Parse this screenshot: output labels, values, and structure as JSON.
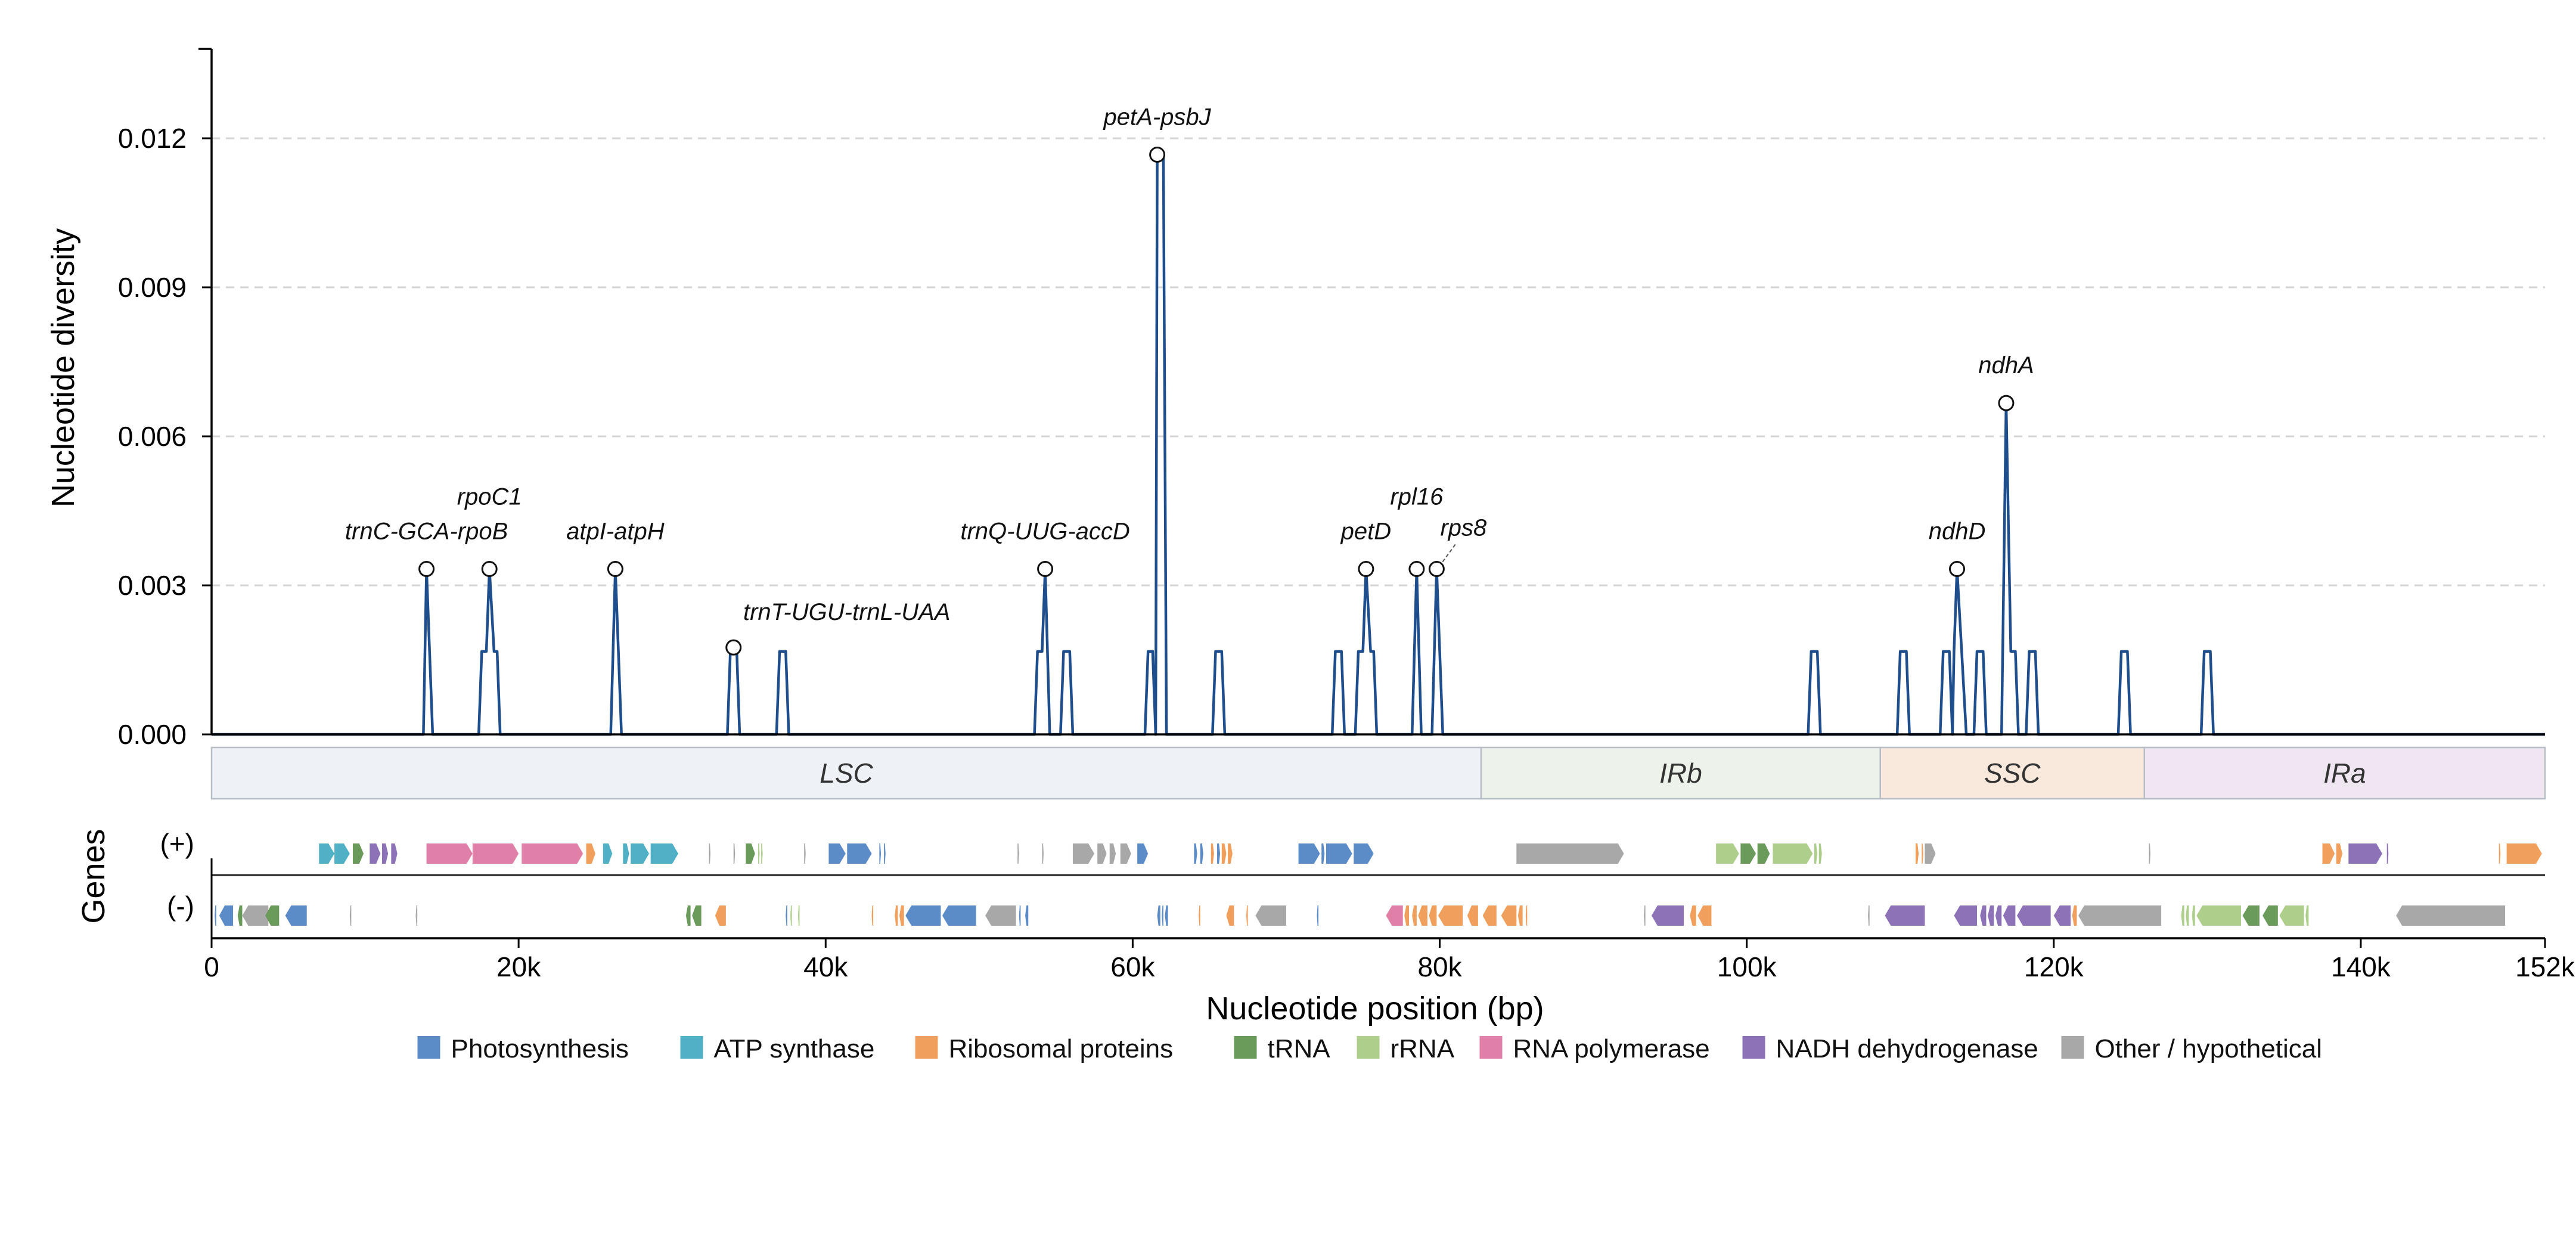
{
  "colors": {
    "line": "#1f4e8c",
    "Photosynthesis": "#5b8cc7",
    "ATP synthase": "#4fb0c6",
    "Ribosomal proteins": "#f0a05c",
    "tRNA": "#6a9b5a",
    "rRNA": "#aecf8c",
    "RNA polymerase": "#e07fa8",
    "NADH dehydrogenase": "#8e72b8",
    "Other / hypothetical": "#a8a8a8"
  },
  "chart_data": {
    "type": "line",
    "xlabel": "Nucleotide position (bp)",
    "ylabel": "Nucleotide diversity",
    "xlim": [
      0,
      152000
    ],
    "ylim": [
      0,
      0.0138
    ],
    "grid": "horizontal dashed",
    "x_ticks": [
      {
        "value": 0,
        "label": "0"
      },
      {
        "value": 20000,
        "label": "20k"
      },
      {
        "value": 40000,
        "label": "40k"
      },
      {
        "value": 60000,
        "label": "60k"
      },
      {
        "value": 80000,
        "label": "80k"
      },
      {
        "value": 100000,
        "label": "100k"
      },
      {
        "value": 120000,
        "label": "120k"
      },
      {
        "value": 140000,
        "label": "140k"
      },
      {
        "value": 152000,
        "label": "152k"
      }
    ],
    "y_ticks": [
      {
        "value": 0,
        "label": "0.000"
      },
      {
        "value": 0.003,
        "label": "0.003"
      },
      {
        "value": 0.006,
        "label": "0.006"
      },
      {
        "value": 0.009,
        "label": "0.009"
      },
      {
        "value": 0.012,
        "label": "0.012"
      }
    ],
    "series": [
      {
        "points": [
          [
            0,
            0
          ],
          [
            13800,
            0
          ],
          [
            14000,
            0.00333
          ],
          [
            14400,
            0
          ],
          [
            17400,
            0
          ],
          [
            17600,
            0.00167
          ],
          [
            17900,
            0.00167
          ],
          [
            18100,
            0.00333
          ],
          [
            18400,
            0.00167
          ],
          [
            18600,
            0.00167
          ],
          [
            18800,
            0
          ],
          [
            26000,
            0
          ],
          [
            26300,
            0.00333
          ],
          [
            26700,
            0
          ],
          [
            33600,
            0
          ],
          [
            33800,
            0.00175
          ],
          [
            34200,
            0.00175
          ],
          [
            34400,
            0
          ],
          [
            36800,
            0
          ],
          [
            37000,
            0.00167
          ],
          [
            37400,
            0.00167
          ],
          [
            37600,
            0
          ],
          [
            53600,
            0
          ],
          [
            53800,
            0.00167
          ],
          [
            54100,
            0.00167
          ],
          [
            54300,
            0.00333
          ],
          [
            54600,
            0
          ],
          [
            55300,
            0
          ],
          [
            55500,
            0.00167
          ],
          [
            55900,
            0.00167
          ],
          [
            56100,
            0
          ],
          [
            60800,
            0
          ],
          [
            61000,
            0.00167
          ],
          [
            61300,
            0.00167
          ],
          [
            61500,
            0
          ],
          [
            61600,
            0.01167
          ],
          [
            62000,
            0.01167
          ],
          [
            62200,
            0
          ],
          [
            65200,
            0
          ],
          [
            65400,
            0.00167
          ],
          [
            65800,
            0.00167
          ],
          [
            66000,
            0
          ],
          [
            73000,
            0
          ],
          [
            73200,
            0.00167
          ],
          [
            73600,
            0.00167
          ],
          [
            73800,
            0
          ],
          [
            74500,
            0
          ],
          [
            74700,
            0.00167
          ],
          [
            75000,
            0.00167
          ],
          [
            75200,
            0.00333
          ],
          [
            75500,
            0.00167
          ],
          [
            75700,
            0.00167
          ],
          [
            75900,
            0
          ],
          [
            78200,
            0
          ],
          [
            78500,
            0.00333
          ],
          [
            78800,
            0
          ],
          [
            79500,
            0
          ],
          [
            79800,
            0.00333
          ],
          [
            80200,
            0
          ],
          [
            104000,
            0
          ],
          [
            104200,
            0.00167
          ],
          [
            104600,
            0.00167
          ],
          [
            104800,
            0
          ],
          [
            109800,
            0
          ],
          [
            110000,
            0.00167
          ],
          [
            110400,
            0.00167
          ],
          [
            110600,
            0
          ],
          [
            112600,
            0
          ],
          [
            112800,
            0.00167
          ],
          [
            113200,
            0.00167
          ],
          [
            113400,
            0
          ],
          [
            113500,
            0.00167
          ],
          [
            113700,
            0.00333
          ],
          [
            114000,
            0.00167
          ],
          [
            114300,
            0
          ],
          [
            114800,
            0
          ],
          [
            115000,
            0.00167
          ],
          [
            115400,
            0.00167
          ],
          [
            115600,
            0
          ],
          [
            116600,
            0
          ],
          [
            116900,
            0.00667
          ],
          [
            117200,
            0.00167
          ],
          [
            117500,
            0.00167
          ],
          [
            117700,
            0
          ],
          [
            118200,
            0
          ],
          [
            118400,
            0.00167
          ],
          [
            118800,
            0.00167
          ],
          [
            119000,
            0
          ],
          [
            124200,
            0
          ],
          [
            124400,
            0.00167
          ],
          [
            124800,
            0.00167
          ],
          [
            125000,
            0
          ],
          [
            129600,
            0
          ],
          [
            129800,
            0.00167
          ],
          [
            130200,
            0.00167
          ],
          [
            130400,
            0
          ],
          [
            152000,
            0
          ]
        ]
      }
    ],
    "annotations": [
      {
        "label": "trnC-GCA-rpoB",
        "x": 14000,
        "y": 0.00333,
        "pos": "above-left"
      },
      {
        "label": "rpoC1",
        "x": 18100,
        "y": 0.00333,
        "pos": "above-high"
      },
      {
        "label": "atpI-atpH",
        "x": 26300,
        "y": 0.00333,
        "pos": "above"
      },
      {
        "label": "trnT-UGU-trnL-UAA",
        "x": 34000,
        "y": 0.00175,
        "pos": "right-above"
      },
      {
        "label": "trnQ-UUG-accD",
        "x": 54300,
        "y": 0.00333,
        "pos": "above"
      },
      {
        "label": "petA-psbJ",
        "x": 61600,
        "y": 0.01167,
        "pos": "above"
      },
      {
        "label": "petD",
        "x": 75200,
        "y": 0.00333,
        "pos": "above"
      },
      {
        "label": "rpl16",
        "x": 78500,
        "y": 0.00333,
        "pos": "above-high"
      },
      {
        "label": "rps8",
        "x": 79800,
        "y": 0.00333,
        "pos": "above-right"
      },
      {
        "label": "ndhD",
        "x": 113700,
        "y": 0.00333,
        "pos": "above"
      },
      {
        "label": "ndhA",
        "x": 116900,
        "y": 0.00667,
        "pos": "above"
      }
    ],
    "regions": [
      {
        "label": "LSC",
        "start": 0,
        "end": 82700,
        "color": "#eef2f6"
      },
      {
        "label": "IRb",
        "start": 82700,
        "end": 108700,
        "color": "#edf3ea"
      },
      {
        "label": "SSC",
        "start": 108700,
        "end": 125900,
        "color": "#f9e9dc"
      },
      {
        "label": "IRa",
        "start": 125900,
        "end": 152000,
        "color": "#f0e6f1"
      }
    ],
    "genes_axis_label": "Genes",
    "strand_labels": {
      "plus": "(+)",
      "minus": "(-)"
    },
    "genes_plus": [
      [
        7000,
        8000,
        "ATP synthase"
      ],
      [
        8000,
        9000,
        "ATP synthase"
      ],
      [
        9200,
        9900,
        "tRNA"
      ],
      [
        10300,
        11000,
        "NADH dehydrogenase"
      ],
      [
        11100,
        11500,
        "NADH dehydrogenase"
      ],
      [
        11700,
        12100,
        "NADH dehydrogenase"
      ],
      [
        14000,
        17000,
        "RNA polymerase"
      ],
      [
        17000,
        20000,
        "RNA polymerase"
      ],
      [
        20200,
        24200,
        "RNA polymerase"
      ],
      [
        24400,
        25000,
        "Ribosomal proteins"
      ],
      [
        25500,
        26100,
        "ATP synthase"
      ],
      [
        26800,
        27200,
        "ATP synthase"
      ],
      [
        27300,
        28500,
        "ATP synthase"
      ],
      [
        28600,
        30400,
        "ATP synthase"
      ],
      [
        32400,
        32500,
        "Other / hypothetical"
      ],
      [
        34000,
        34100,
        "Other / hypothetical"
      ],
      [
        34800,
        35400,
        "tRNA"
      ],
      [
        35600,
        35700,
        "rRNA"
      ],
      [
        35800,
        35900,
        "rRNA"
      ],
      [
        38600,
        38700,
        "Other / hypothetical"
      ],
      [
        40200,
        41300,
        "Photosynthesis"
      ],
      [
        41400,
        43000,
        "Photosynthesis"
      ],
      [
        43500,
        43600,
        "Photosynthesis"
      ],
      [
        43800,
        43900,
        "Photosynthesis"
      ],
      [
        52500,
        52600,
        "Other / hypothetical"
      ],
      [
        54100,
        54200,
        "Other / hypothetical"
      ],
      [
        56100,
        57500,
        "Other / hypothetical"
      ],
      [
        57700,
        58300,
        "Other / hypothetical"
      ],
      [
        58500,
        58900,
        "Other / hypothetical"
      ],
      [
        59200,
        59900,
        "Other / hypothetical"
      ],
      [
        60300,
        61000,
        "Photosynthesis"
      ],
      [
        64000,
        64200,
        "Photosynthesis"
      ],
      [
        64400,
        64600,
        "Photosynthesis"
      ],
      [
        65100,
        65300,
        "Ribosomal proteins"
      ],
      [
        65500,
        65700,
        "Photosynthesis"
      ],
      [
        65800,
        66100,
        "Ribosomal proteins"
      ],
      [
        66200,
        66500,
        "Ribosomal proteins"
      ],
      [
        70800,
        72200,
        "Photosynthesis"
      ],
      [
        72300,
        72500,
        "Photosynthesis"
      ],
      [
        72600,
        74300,
        "Photosynthesis"
      ],
      [
        74400,
        75700,
        "Photosynthesis"
      ],
      [
        85000,
        92000,
        "Other / hypothetical"
      ],
      [
        98000,
        99500,
        "rRNA"
      ],
      [
        99600,
        100600,
        "tRNA"
      ],
      [
        100700,
        101500,
        "tRNA"
      ],
      [
        101700,
        104300,
        "rRNA"
      ],
      [
        104400,
        104600,
        "rRNA"
      ],
      [
        104700,
        104900,
        "rRNA"
      ],
      [
        111000,
        111200,
        "Ribosomal proteins"
      ],
      [
        111400,
        111500,
        "Ribosomal proteins"
      ],
      [
        111600,
        112300,
        "Other / hypothetical"
      ],
      [
        126200,
        126300,
        "Other / hypothetical"
      ],
      [
        137500,
        138300,
        "Ribosomal proteins"
      ],
      [
        138400,
        138800,
        "Ribosomal proteins"
      ],
      [
        139200,
        141400,
        "NADH dehydrogenase"
      ],
      [
        141700,
        141800,
        "NADH dehydrogenase"
      ],
      [
        149000,
        149100,
        "Ribosomal proteins"
      ],
      [
        149500,
        151800,
        "Ribosomal proteins"
      ]
    ],
    "genes_minus": [
      [
        200,
        300,
        "Photosynthesis"
      ],
      [
        500,
        1400,
        "Photosynthesis"
      ],
      [
        1700,
        2000,
        "tRNA"
      ],
      [
        2000,
        3700,
        "Other / hypothetical"
      ],
      [
        3500,
        4400,
        "tRNA"
      ],
      [
        4800,
        6200,
        "Photosynthesis"
      ],
      [
        9000,
        9100,
        "Other / hypothetical"
      ],
      [
        13300,
        13400,
        "Other / hypothetical"
      ],
      [
        30900,
        31200,
        "tRNA"
      ],
      [
        31300,
        31900,
        "tRNA"
      ],
      [
        32800,
        33500,
        "Ribosomal proteins"
      ],
      [
        37400,
        37500,
        "Photosynthesis"
      ],
      [
        37700,
        37800,
        "rRNA"
      ],
      [
        38200,
        38300,
        "rRNA"
      ],
      [
        43000,
        43100,
        "Ribosomal proteins"
      ],
      [
        44500,
        44700,
        "Ribosomal proteins"
      ],
      [
        44800,
        45100,
        "Ribosomal proteins"
      ],
      [
        45200,
        47500,
        "Photosynthesis"
      ],
      [
        47600,
        49800,
        "Photosynthesis"
      ],
      [
        50400,
        52400,
        "Other / hypothetical"
      ],
      [
        52600,
        52700,
        "Photosynthesis"
      ],
      [
        53000,
        53200,
        "Photosynthesis"
      ],
      [
        61600,
        61800,
        "Photosynthesis"
      ],
      [
        61900,
        62000,
        "Photosynthesis"
      ],
      [
        62100,
        62300,
        "Photosynthesis"
      ],
      [
        64300,
        64400,
        "Ribosomal proteins"
      ],
      [
        66100,
        66600,
        "Ribosomal proteins"
      ],
      [
        67400,
        67500,
        "Ribosomal proteins"
      ],
      [
        68000,
        70000,
        "Other / hypothetical"
      ],
      [
        72000,
        72100,
        "Photosynthesis"
      ],
      [
        76500,
        77600,
        "RNA polymerase"
      ],
      [
        77700,
        78000,
        "Ribosomal proteins"
      ],
      [
        78200,
        78500,
        "Ribosomal proteins"
      ],
      [
        78600,
        79200,
        "Ribosomal proteins"
      ],
      [
        79300,
        79800,
        "Ribosomal proteins"
      ],
      [
        79900,
        81500,
        "Ribosomal proteins"
      ],
      [
        81800,
        82500,
        "Ribosomal proteins"
      ],
      [
        82800,
        83700,
        "Ribosomal proteins"
      ],
      [
        84000,
        85000,
        "Ribosomal proteins"
      ],
      [
        85100,
        85400,
        "Ribosomal proteins"
      ],
      [
        85600,
        85700,
        "Ribosomal proteins"
      ],
      [
        93300,
        93400,
        "Other / hypothetical"
      ],
      [
        93800,
        95900,
        "NADH dehydrogenase"
      ],
      [
        96300,
        96700,
        "Ribosomal proteins"
      ],
      [
        96800,
        97700,
        "Ribosomal proteins"
      ],
      [
        107900,
        108000,
        "Other / hypothetical"
      ],
      [
        109000,
        111600,
        "NADH dehydrogenase"
      ],
      [
        113500,
        115000,
        "NADH dehydrogenase"
      ],
      [
        115200,
        115600,
        "NADH dehydrogenase"
      ],
      [
        115700,
        116100,
        "NADH dehydrogenase"
      ],
      [
        116200,
        116600,
        "NADH dehydrogenase"
      ],
      [
        116700,
        117500,
        "NADH dehydrogenase"
      ],
      [
        117600,
        119800,
        "NADH dehydrogenase"
      ],
      [
        120000,
        121100,
        "NADH dehydrogenase"
      ],
      [
        121200,
        121500,
        "Ribosomal proteins"
      ],
      [
        121600,
        127000,
        "Other / hypothetical"
      ],
      [
        128300,
        128500,
        "rRNA"
      ],
      [
        128600,
        128800,
        "rRNA"
      ],
      [
        129000,
        129200,
        "rRNA"
      ],
      [
        129300,
        132200,
        "rRNA"
      ],
      [
        132300,
        133400,
        "tRNA"
      ],
      [
        133600,
        134600,
        "tRNA"
      ],
      [
        134700,
        136300,
        "rRNA"
      ],
      [
        136400,
        136600,
        "rRNA"
      ],
      [
        142300,
        149400,
        "Other / hypothetical"
      ]
    ],
    "legend": [
      "Photosynthesis",
      "ATP synthase",
      "Ribosomal proteins",
      "tRNA",
      "rRNA",
      "RNA polymerase",
      "NADH dehydrogenase",
      "Other / hypothetical"
    ]
  }
}
